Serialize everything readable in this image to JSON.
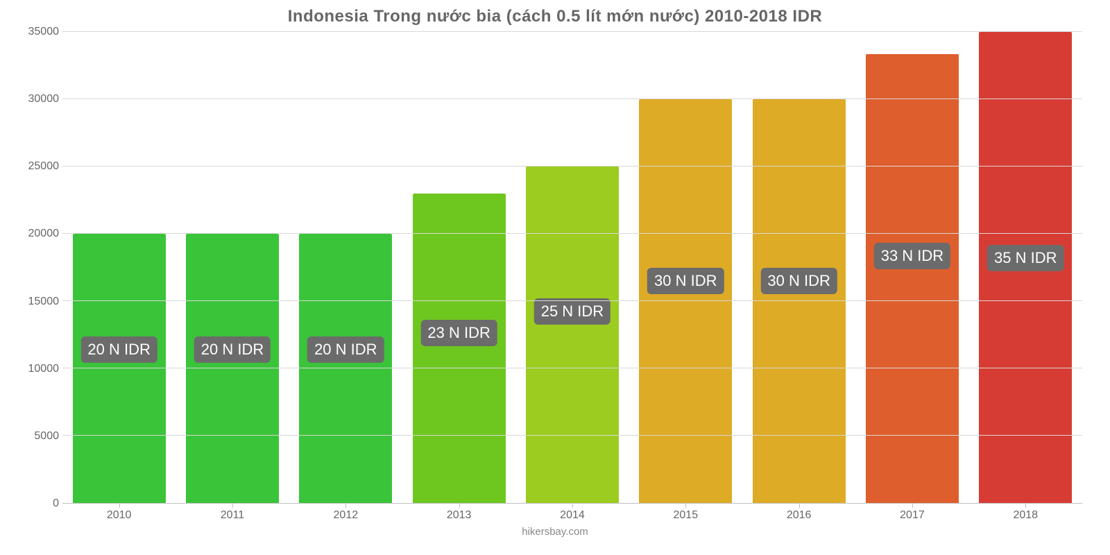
{
  "chart": {
    "type": "bar",
    "title": "Indonesia Trong nước bia (cách 0.5 lít mớn nước) 2010-2018 IDR",
    "title_fontsize": 24,
    "title_color": "#666666",
    "attribution": "hikersbay.com",
    "background_color": "#ffffff",
    "grid_color": "#d8d8d8",
    "axis_color": "#666666",
    "tick_fontsize": 16,
    "ylim": [
      0,
      35000
    ],
    "yticks": [
      0,
      5000,
      10000,
      15000,
      20000,
      25000,
      30000,
      35000
    ],
    "categories": [
      "2010",
      "2011",
      "2012",
      "2013",
      "2014",
      "2015",
      "2016",
      "2017",
      "2018"
    ],
    "values": [
      20000,
      20000,
      20000,
      23000,
      25000,
      30000,
      30000,
      33333,
      35000
    ],
    "value_labels": [
      "20 N IDR",
      "20 N IDR",
      "20 N IDR",
      "23 N IDR",
      "25 N IDR",
      "30 N IDR",
      "30 N IDR",
      "33 N IDR",
      "35 N IDR"
    ],
    "value_label_bottom_pct": [
      57,
      57,
      57,
      55,
      57,
      55,
      55,
      55,
      52
    ],
    "bar_colors": [
      "#3ac43a",
      "#3ac43a",
      "#3ac43a",
      "#6ec71f",
      "#9bcc1f",
      "#deab26",
      "#deab26",
      "#de5e2d",
      "#d73c34"
    ],
    "bar_width_pct": 82,
    "label_bg": "#6b6b6b",
    "label_color": "#ffffff",
    "label_fontsize": 22
  }
}
